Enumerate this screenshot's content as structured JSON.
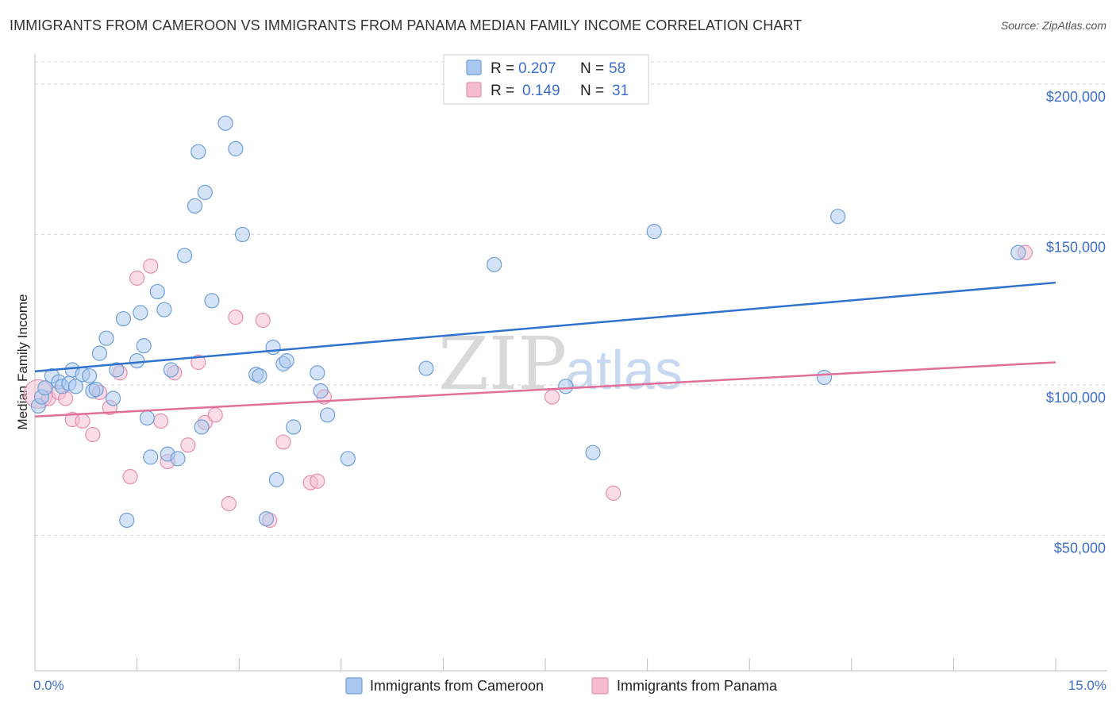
{
  "header": {
    "title": "IMMIGRANTS FROM CAMEROON VS IMMIGRANTS FROM PANAMA MEDIAN FAMILY INCOME CORRELATION CHART",
    "source": "Source: ZipAtlas.com"
  },
  "watermark": {
    "zip": "ZIP",
    "atlas": "atlas"
  },
  "colors": {
    "cameroon_fill": "#aac8ef",
    "cameroon_stroke": "#6f9fd8",
    "cameroon_line": "#2f72cc",
    "panama_fill": "#f5bcd0",
    "panama_stroke": "#e58fb0",
    "panama_line": "#e07099",
    "grid": "#d8d8d8",
    "axis_text": "#3d6fc9"
  },
  "legend": {
    "rows": [
      {
        "r_label": "R =",
        "r_value": "0.207",
        "n_label": "N =",
        "n_value": "58"
      },
      {
        "r_label": "R =",
        "r_value": "0.149",
        "n_label": "N =",
        "n_value": "31"
      }
    ]
  },
  "chart_data": {
    "type": "scatter",
    "title": "IMMIGRANTS FROM CAMEROON VS IMMIGRANTS FROM PANAMA MEDIAN FAMILY INCOME CORRELATION CHART",
    "xlabel": "",
    "ylabel": "Median Family Income",
    "xlim": [
      0,
      15
    ],
    "ylim": [
      5000,
      210000
    ],
    "x_tick_labels": [
      "0.0%",
      "15.0%"
    ],
    "y_ticks": [
      50000,
      100000,
      150000,
      200000
    ],
    "y_tick_labels": [
      "$50,000",
      "$100,000",
      "$150,000",
      "$200,000"
    ],
    "grid": true,
    "legend_position": "bottom",
    "series": [
      {
        "name": "Immigrants from Cameroon",
        "r": 0.207,
        "n": 58,
        "trend": {
          "x": [
            0,
            15
          ],
          "y": [
            104500,
            134000
          ]
        },
        "points": [
          [
            0.05,
            93000,
            9
          ],
          [
            0.1,
            96000,
            9
          ],
          [
            0.15,
            99000,
            9
          ],
          [
            0.25,
            103000,
            9
          ],
          [
            0.35,
            101000,
            9
          ],
          [
            0.4,
            99500,
            9
          ],
          [
            0.5,
            100500,
            9
          ],
          [
            0.55,
            105000,
            9
          ],
          [
            0.6,
            99500,
            9
          ],
          [
            0.7,
            103500,
            9
          ],
          [
            0.8,
            103000,
            9
          ],
          [
            0.85,
            98000,
            9
          ],
          [
            0.9,
            98500,
            9
          ],
          [
            0.95,
            110500,
            9
          ],
          [
            1.05,
            115500,
            9
          ],
          [
            1.15,
            95500,
            9
          ],
          [
            1.2,
            105000,
            9
          ],
          [
            1.3,
            122000,
            9
          ],
          [
            1.35,
            55000,
            9
          ],
          [
            1.5,
            108000,
            9
          ],
          [
            1.55,
            124000,
            9
          ],
          [
            1.6,
            113000,
            9
          ],
          [
            1.65,
            89000,
            9
          ],
          [
            1.7,
            76000,
            9
          ],
          [
            1.8,
            131000,
            9
          ],
          [
            1.9,
            125000,
            9
          ],
          [
            1.95,
            77000,
            9
          ],
          [
            2.0,
            105000,
            9
          ],
          [
            2.1,
            75500,
            9
          ],
          [
            2.2,
            143000,
            9
          ],
          [
            2.35,
            159500,
            9
          ],
          [
            2.4,
            177500,
            9
          ],
          [
            2.45,
            86000,
            9
          ],
          [
            2.5,
            164000,
            9
          ],
          [
            2.6,
            128000,
            9
          ],
          [
            2.8,
            187000,
            9
          ],
          [
            2.95,
            178500,
            9
          ],
          [
            3.05,
            150000,
            9
          ],
          [
            3.25,
            103500,
            9
          ],
          [
            3.3,
            103000,
            9
          ],
          [
            3.4,
            55500,
            9
          ],
          [
            3.5,
            112500,
            9
          ],
          [
            3.55,
            68500,
            9
          ],
          [
            3.65,
            107000,
            9
          ],
          [
            3.7,
            108000,
            9
          ],
          [
            3.8,
            86000,
            9
          ],
          [
            4.15,
            104000,
            9
          ],
          [
            4.2,
            98000,
            9
          ],
          [
            4.3,
            90000,
            9
          ],
          [
            4.6,
            75500,
            9
          ],
          [
            5.75,
            105500,
            9
          ],
          [
            6.75,
            140000,
            9
          ],
          [
            7.8,
            99500,
            9
          ],
          [
            8.2,
            77500,
            9
          ],
          [
            9.1,
            151000,
            9
          ],
          [
            11.6,
            102500,
            9
          ],
          [
            11.8,
            156000,
            9
          ],
          [
            14.45,
            144000,
            9
          ]
        ]
      },
      {
        "name": "Immigrants from Panama",
        "r": 0.149,
        "n": 31,
        "trend": {
          "x": [
            0,
            15
          ],
          "y": [
            89500,
            107500
          ]
        },
        "points": [
          [
            0.05,
            97000,
            18
          ],
          [
            0.2,
            95500,
            9
          ],
          [
            0.35,
            97500,
            9
          ],
          [
            0.45,
            95500,
            9
          ],
          [
            0.55,
            88500,
            9
          ],
          [
            0.7,
            88000,
            9
          ],
          [
            0.85,
            83500,
            9
          ],
          [
            0.95,
            97500,
            9
          ],
          [
            1.1,
            92500,
            9
          ],
          [
            1.25,
            104000,
            9
          ],
          [
            1.4,
            69500,
            9
          ],
          [
            1.5,
            135500,
            9
          ],
          [
            1.7,
            139500,
            9
          ],
          [
            1.85,
            88000,
            9
          ],
          [
            1.95,
            74500,
            9
          ],
          [
            2.05,
            104000,
            9
          ],
          [
            2.25,
            80000,
            9
          ],
          [
            2.4,
            107500,
            9
          ],
          [
            2.5,
            87500,
            9
          ],
          [
            2.65,
            90000,
            9
          ],
          [
            2.85,
            60500,
            9
          ],
          [
            2.95,
            122500,
            9
          ],
          [
            3.35,
            121500,
            9
          ],
          [
            3.45,
            55000,
            9
          ],
          [
            3.65,
            81000,
            9
          ],
          [
            4.05,
            67500,
            9
          ],
          [
            4.15,
            68000,
            9
          ],
          [
            4.25,
            96000,
            9
          ],
          [
            7.6,
            96000,
            9
          ],
          [
            8.5,
            64000,
            9
          ],
          [
            14.55,
            144000,
            9
          ]
        ]
      }
    ]
  }
}
